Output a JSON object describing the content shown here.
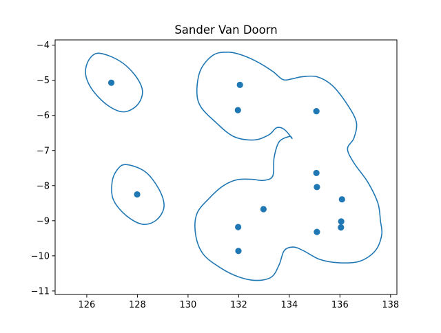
{
  "chart_data": {
    "type": "scatter",
    "title": "Sander Van Doorn",
    "xlabel": "",
    "ylabel": "",
    "xlim": [
      124.75,
      138.25
    ],
    "ylim": [
      -11.1,
      -3.85
    ],
    "x_ticks": [
      126,
      128,
      130,
      132,
      134,
      136,
      138
    ],
    "y_ticks": [
      -4,
      -5,
      -6,
      -7,
      -8,
      -9,
      -10,
      -11
    ],
    "x_tick_labels": [
      "126",
      "128",
      "130",
      "132",
      "134",
      "136",
      "138"
    ],
    "y_tick_labels": [
      "−4",
      "−5",
      "−6",
      "−7",
      "−8",
      "−9",
      "−10",
      "−11"
    ],
    "grid": false,
    "legend": "none",
    "colors": {
      "series": "#1f77b4",
      "axes": "#000000"
    },
    "series": [
      {
        "values": [
          {
            "x": 126.97,
            "y": -5.07
          },
          {
            "x": 127.99,
            "y": -8.25
          },
          {
            "x": 132.05,
            "y": -5.13
          },
          {
            "x": 131.97,
            "y": -5.85
          },
          {
            "x": 135.07,
            "y": -5.88
          },
          {
            "x": 135.07,
            "y": -7.64
          },
          {
            "x": 135.09,
            "y": -8.04
          },
          {
            "x": 136.08,
            "y": -8.39
          },
          {
            "x": 136.05,
            "y": -9.02
          },
          {
            "x": 136.04,
            "y": -9.19
          },
          {
            "x": 132.98,
            "y": -8.67
          },
          {
            "x": 131.98,
            "y": -9.18
          },
          {
            "x": 131.99,
            "y": -9.86
          },
          {
            "x": 135.09,
            "y": -9.32
          }
        ]
      }
    ],
    "outlines": [
      [
        [
          126.5,
          -4.23
        ],
        [
          127.3,
          -4.45
        ],
        [
          127.9,
          -4.85
        ],
        [
          128.2,
          -5.3
        ],
        [
          128.0,
          -5.7
        ],
        [
          127.45,
          -5.9
        ],
        [
          126.8,
          -5.7
        ],
        [
          126.2,
          -5.25
        ],
        [
          125.95,
          -4.8
        ],
        [
          126.1,
          -4.4
        ],
        [
          126.5,
          -4.23
        ]
      ],
      [
        [
          127.55,
          -7.4
        ],
        [
          128.3,
          -7.6
        ],
        [
          128.85,
          -8.1
        ],
        [
          129.05,
          -8.6
        ],
        [
          128.75,
          -8.98
        ],
        [
          128.2,
          -9.1
        ],
        [
          127.55,
          -8.85
        ],
        [
          127.05,
          -8.4
        ],
        [
          127.0,
          -7.9
        ],
        [
          127.2,
          -7.55
        ],
        [
          127.55,
          -7.4
        ]
      ],
      [
        [
          130.5,
          -4.7
        ],
        [
          131.0,
          -4.28
        ],
        [
          131.6,
          -4.2
        ],
        [
          132.2,
          -4.3
        ],
        [
          132.8,
          -4.5
        ],
        [
          133.35,
          -4.75
        ],
        [
          133.75,
          -4.98
        ],
        [
          134.1,
          -4.96
        ],
        [
          134.5,
          -4.9
        ],
        [
          135.1,
          -4.9
        ],
        [
          135.7,
          -5.15
        ],
        [
          136.3,
          -5.7
        ],
        [
          136.65,
          -6.2
        ],
        [
          136.55,
          -6.65
        ],
        [
          136.3,
          -6.95
        ],
        [
          136.55,
          -7.35
        ],
        [
          137.1,
          -7.9
        ],
        [
          137.5,
          -8.5
        ],
        [
          137.6,
          -9.0
        ],
        [
          137.65,
          -9.4
        ],
        [
          137.4,
          -9.85
        ],
        [
          136.8,
          -10.15
        ],
        [
          136.0,
          -10.2
        ],
        [
          135.2,
          -10.1
        ],
        [
          134.55,
          -9.85
        ],
        [
          134.15,
          -9.75
        ],
        [
          133.8,
          -9.85
        ],
        [
          133.6,
          -10.25
        ],
        [
          133.3,
          -10.6
        ],
        [
          132.7,
          -10.7
        ],
        [
          132.0,
          -10.6
        ],
        [
          131.3,
          -10.35
        ],
        [
          130.6,
          -9.95
        ],
        [
          130.3,
          -9.4
        ],
        [
          130.35,
          -8.8
        ],
        [
          130.85,
          -8.35
        ],
        [
          131.4,
          -8.0
        ],
        [
          131.95,
          -7.83
        ],
        [
          132.5,
          -7.82
        ],
        [
          133.0,
          -7.85
        ],
        [
          133.35,
          -7.72
        ],
        [
          133.4,
          -7.2
        ],
        [
          133.6,
          -6.75
        ],
        [
          134.0,
          -6.6
        ],
        [
          134.1,
          -6.65
        ],
        [
          133.8,
          -6.4
        ],
        [
          133.5,
          -6.35
        ],
        [
          133.2,
          -6.55
        ],
        [
          132.6,
          -6.7
        ],
        [
          131.8,
          -6.6
        ],
        [
          131.1,
          -6.2
        ],
        [
          130.5,
          -5.75
        ],
        [
          130.35,
          -5.3
        ],
        [
          130.5,
          -4.7
        ]
      ]
    ]
  }
}
